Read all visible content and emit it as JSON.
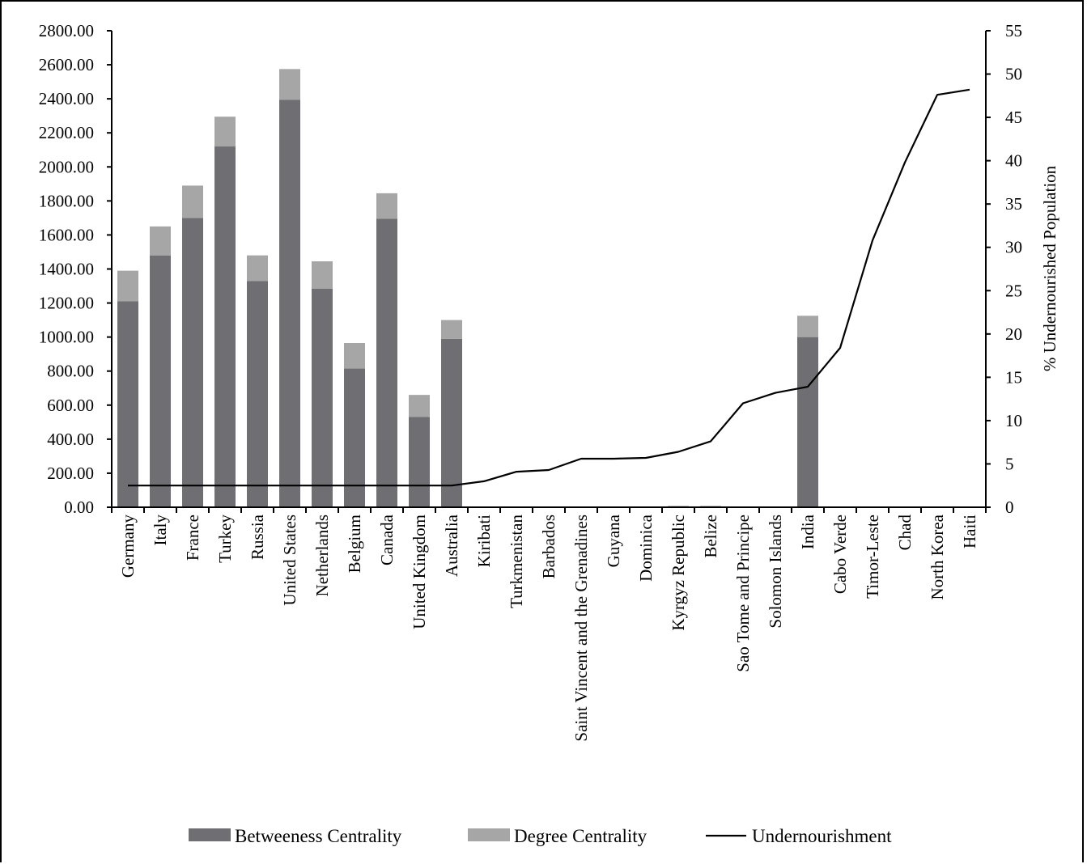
{
  "chart_data": {
    "type": "bar",
    "stacked": true,
    "categories": [
      "Germany",
      "Italy",
      "France",
      "Turkey",
      "Russia",
      "United States",
      "Netherlands",
      "Belgium",
      "Canada",
      "United Kingdom",
      "Australia",
      "Kiribati",
      "Turkmenistan",
      "Barbados",
      "Saint Vincent and the Grenadines",
      "Guyana",
      "Dominica",
      "Kyrgyz Republic",
      "Belize",
      "Sao Tome and Principe",
      "Solomon Islands",
      "India",
      "Cabo Verde",
      "Timor-Leste",
      "Chad",
      "North Korea",
      "Haiti"
    ],
    "series": [
      {
        "name": "Betweeness Centrality",
        "type": "bar",
        "axis": "left",
        "color": "#6f6f73",
        "values": [
          1210,
          1480,
          1700,
          2120,
          1330,
          2395,
          1285,
          815,
          1695,
          530,
          990,
          0,
          0,
          0,
          0,
          0,
          0,
          0,
          0,
          0,
          0,
          1000,
          0,
          0,
          0,
          0,
          0
        ]
      },
      {
        "name": "Degree Centrality",
        "type": "bar",
        "axis": "left",
        "color": "#a6a6a6",
        "values": [
          180,
          170,
          190,
          175,
          150,
          180,
          160,
          150,
          150,
          130,
          110,
          0,
          0,
          0,
          0,
          0,
          0,
          8,
          8,
          0,
          0,
          125,
          0,
          0,
          0,
          0,
          0
        ]
      },
      {
        "name": "Undernourishment",
        "type": "line",
        "axis": "right",
        "color": "#000000",
        "values": [
          2.5,
          2.5,
          2.5,
          2.5,
          2.5,
          2.5,
          2.5,
          2.5,
          2.5,
          2.5,
          2.5,
          3.0,
          4.1,
          4.3,
          5.6,
          5.6,
          5.7,
          6.4,
          7.6,
          12.0,
          13.2,
          13.9,
          18.4,
          30.8,
          39.8,
          47.6,
          48.2
        ]
      }
    ],
    "y_left": {
      "min": 0,
      "max": 2800,
      "step": 200,
      "tick_labels": [
        "0.00",
        "200.00",
        "400.00",
        "600.00",
        "800.00",
        "1000.00",
        "1200.00",
        "1400.00",
        "1600.00",
        "1800.00",
        "2000.00",
        "2200.00",
        "2400.00",
        "2600.00",
        "2800.00"
      ]
    },
    "y_right": {
      "min": 0,
      "max": 55,
      "step": 5,
      "label": "% Undernourished  Population",
      "tick_labels": [
        "0",
        "5",
        "10",
        "15",
        "20",
        "25",
        "30",
        "35",
        "40",
        "45",
        "50",
        "55"
      ]
    },
    "legend": {
      "placement": "bottom",
      "entries": [
        "Betweeness Centrality",
        "Degree Centrality",
        "Undernourishment"
      ]
    },
    "grid": false
  }
}
